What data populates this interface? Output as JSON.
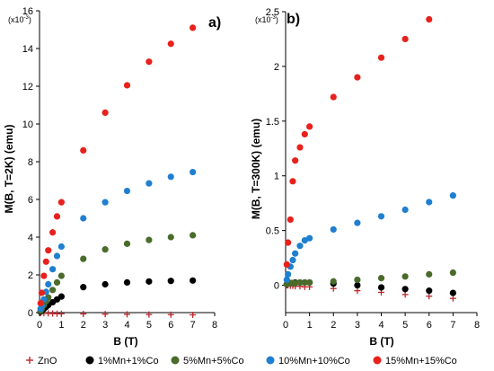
{
  "chart_data": [
    {
      "type": "scatter",
      "panel_label": "a)",
      "xlabel": "B (T)",
      "ylabel": "M(B, T=2K) (emu)",
      "y_multiplier_label": "(x10",
      "y_multiplier_exp": "-3",
      "xlim": [
        0,
        8
      ],
      "ylim": [
        0,
        16
      ],
      "xticks": [
        "0",
        "1",
        "2",
        "3",
        "4",
        "5",
        "6",
        "7",
        "8"
      ],
      "yticks": [
        "0",
        "2",
        "4",
        "6",
        "8",
        "10",
        "12",
        "14",
        "16"
      ],
      "grid": false,
      "series": [
        {
          "name": "ZnO",
          "marker": "plus",
          "color": "#c0282d",
          "x": [
            0.05,
            0.2,
            0.4,
            0.6,
            0.8,
            1,
            2,
            3,
            4,
            5,
            6,
            7
          ],
          "y": [
            -0.02,
            -0.03,
            -0.04,
            -0.05,
            -0.06,
            -0.06,
            -0.07,
            -0.08,
            -0.09,
            -0.1,
            -0.11,
            -0.12
          ]
        },
        {
          "name": "1%Mn+1%Co",
          "marker": "circle",
          "color": "#000000",
          "x": [
            0.05,
            0.1,
            0.2,
            0.3,
            0.4,
            0.6,
            0.8,
            1,
            2,
            3,
            4,
            5,
            6,
            7
          ],
          "y": [
            0.05,
            0.1,
            0.2,
            0.3,
            0.4,
            0.55,
            0.7,
            0.85,
            1.35,
            1.5,
            1.6,
            1.65,
            1.68,
            1.7
          ]
        },
        {
          "name": "5%Mn+5%Co",
          "marker": "circle",
          "color": "#4a6b2a",
          "x": [
            0.05,
            0.1,
            0.2,
            0.3,
            0.4,
            0.6,
            0.8,
            1,
            2,
            3,
            4,
            5,
            6,
            7
          ],
          "y": [
            0.1,
            0.2,
            0.4,
            0.6,
            0.8,
            1.2,
            1.6,
            1.95,
            2.85,
            3.35,
            3.65,
            3.85,
            4.0,
            4.1
          ]
        },
        {
          "name": "10%Mn+10%Co",
          "marker": "circle",
          "color": "#1f7fd0",
          "x": [
            0.05,
            0.1,
            0.2,
            0.3,
            0.4,
            0.6,
            0.8,
            1,
            2,
            3,
            4,
            5,
            6,
            7
          ],
          "y": [
            0.2,
            0.35,
            0.7,
            1.1,
            1.5,
            2.3,
            3.0,
            3.5,
            5.0,
            5.85,
            6.45,
            6.85,
            7.2,
            7.45
          ]
        },
        {
          "name": "15%Mn+15%Co",
          "marker": "circle",
          "color": "#e8211c",
          "x": [
            0.05,
            0.1,
            0.2,
            0.3,
            0.4,
            0.6,
            0.8,
            1,
            2,
            3,
            4,
            5,
            6,
            7
          ],
          "y": [
            0.5,
            1.05,
            1.95,
            2.7,
            3.3,
            4.25,
            5.1,
            5.85,
            8.6,
            10.6,
            12.05,
            13.3,
            14.25,
            15.1
          ]
        }
      ]
    },
    {
      "type": "scatter",
      "panel_label": "b)",
      "xlabel": "B (T)",
      "ylabel": "M(B, T=300K) (emu)",
      "y_multiplier_label": "(x10",
      "y_multiplier_exp": "-3",
      "xlim": [
        0,
        8
      ],
      "ylim": [
        -0.25,
        2.5
      ],
      "xticks": [
        "0",
        "1",
        "2",
        "3",
        "4",
        "5",
        "6",
        "7",
        "8"
      ],
      "yticks": [
        "0",
        "0.5",
        "1",
        "1.5",
        "2",
        "2.5"
      ],
      "ytick_values": [
        0,
        0.5,
        1,
        1.5,
        2,
        2.5
      ],
      "grid": false,
      "series": [
        {
          "name": "ZnO",
          "marker": "plus",
          "color": "#c0282d",
          "x": [
            0.05,
            0.1,
            0.2,
            0.3,
            0.4,
            0.6,
            0.8,
            1,
            2,
            3,
            4,
            5,
            6,
            7
          ],
          "y": [
            0.0,
            0.0,
            -0.005,
            -0.005,
            -0.01,
            -0.01,
            -0.015,
            -0.015,
            -0.03,
            -0.05,
            -0.065,
            -0.085,
            -0.1,
            -0.12
          ]
        },
        {
          "name": "1%Mn+1%Co",
          "marker": "circle",
          "color": "#000000",
          "x": [
            0.05,
            0.1,
            0.2,
            0.3,
            0.4,
            0.6,
            0.8,
            1,
            2,
            3,
            4,
            5,
            6,
            7
          ],
          "y": [
            0.01,
            0.015,
            0.02,
            0.02,
            0.025,
            0.025,
            0.025,
            0.025,
            0.015,
            0.0,
            -0.02,
            -0.035,
            -0.05,
            -0.07
          ]
        },
        {
          "name": "5%Mn+5%Co",
          "marker": "circle",
          "color": "#4a6b2a",
          "x": [
            0.05,
            0.1,
            0.2,
            0.3,
            0.4,
            0.6,
            0.8,
            1,
            2,
            3,
            4,
            5,
            6,
            7
          ],
          "y": [
            0.01,
            0.015,
            0.02,
            0.02,
            0.02,
            0.025,
            0.025,
            0.025,
            0.035,
            0.05,
            0.065,
            0.08,
            0.1,
            0.115
          ]
        },
        {
          "name": "10%Mn+10%Co",
          "marker": "circle",
          "color": "#1f7fd0",
          "x": [
            0.05,
            0.1,
            0.2,
            0.3,
            0.4,
            0.6,
            0.8,
            1,
            2,
            3,
            4,
            5,
            6,
            7
          ],
          "y": [
            0.05,
            0.1,
            0.17,
            0.23,
            0.29,
            0.36,
            0.41,
            0.43,
            0.51,
            0.57,
            0.63,
            0.69,
            0.76,
            0.82
          ]
        },
        {
          "name": "15%Mn+15%Co",
          "marker": "circle",
          "color": "#e8211c",
          "x": [
            0.05,
            0.1,
            0.2,
            0.3,
            0.4,
            0.6,
            0.8,
            1,
            2,
            3,
            4,
            5,
            6
          ],
          "y": [
            0.19,
            0.39,
            0.6,
            0.95,
            1.14,
            1.26,
            1.38,
            1.45,
            1.72,
            1.9,
            2.08,
            2.25,
            2.43
          ]
        }
      ]
    }
  ],
  "legend": {
    "placement": "bottom",
    "items": [
      {
        "label": "ZnO",
        "marker": "plus",
        "color": "#c0282d"
      },
      {
        "label": "1%Mn+1%Co",
        "marker": "circle",
        "color": "#000000"
      },
      {
        "label": "5%Mn+5%Co",
        "marker": "circle",
        "color": "#4a6b2a"
      },
      {
        "label": "10%Mn+10%Co",
        "marker": "circle",
        "color": "#1f7fd0"
      },
      {
        "label": "15%Mn+15%Co",
        "marker": "circle",
        "color": "#e8211c"
      }
    ]
  }
}
